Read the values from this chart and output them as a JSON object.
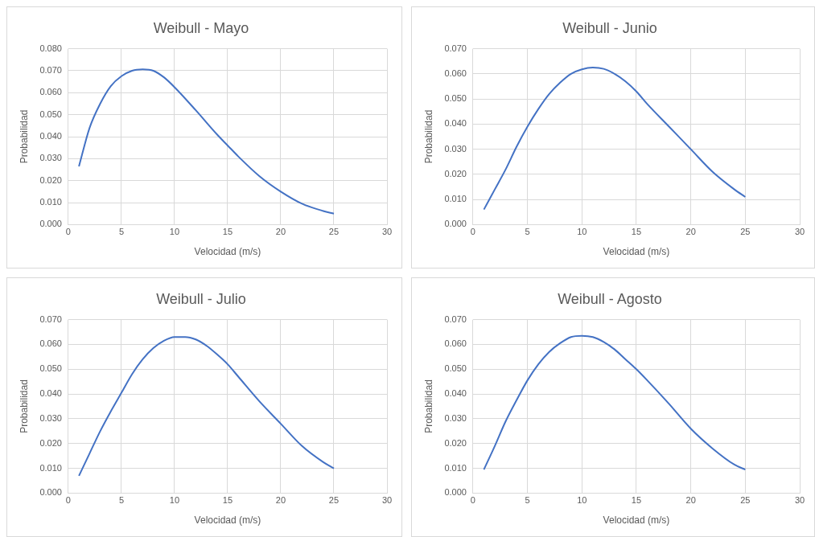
{
  "chart_data": [
    {
      "type": "line",
      "title": "Weibull - Mayo",
      "xlabel": "Velocidad (m/s)",
      "ylabel": "Probabilidad",
      "grid": true,
      "x": [
        1,
        2,
        3,
        4,
        5,
        6,
        7,
        8,
        9,
        10,
        12,
        14,
        15,
        16,
        18,
        20,
        22,
        24,
        25
      ],
      "series": [
        {
          "color": "#4472c4",
          "values": [
            0.0265,
            0.044,
            0.055,
            0.063,
            0.0675,
            0.07,
            0.0706,
            0.07,
            0.067,
            0.0625,
            0.052,
            0.041,
            0.036,
            0.031,
            0.022,
            0.015,
            0.0095,
            0.0062,
            0.005
          ]
        }
      ],
      "xlim": [
        0,
        30
      ],
      "xticks": [
        0,
        5,
        10,
        15,
        20,
        25,
        30
      ],
      "ylim": [
        0,
        0.08
      ],
      "yticks": [
        {
          "value": 0,
          "label": "0.000"
        },
        {
          "value": 0.01,
          "label": "0.010"
        },
        {
          "value": 0.02,
          "label": "0.020"
        },
        {
          "value": 0.03,
          "label": "0.030"
        },
        {
          "value": 0.04,
          "label": "0.040"
        },
        {
          "value": 0.05,
          "label": "0.050"
        },
        {
          "value": 0.06,
          "label": "0.060"
        },
        {
          "value": 0.07,
          "label": "0.070"
        },
        {
          "value": 0.08,
          "label": "0.080"
        }
      ]
    },
    {
      "type": "line",
      "title": "Weibull - Junio",
      "xlabel": "Velocidad (m/s)",
      "ylabel": "Probabilidad",
      "grid": true,
      "x": [
        1,
        2,
        3,
        4,
        5,
        6,
        7,
        8,
        9,
        10,
        11,
        12,
        13,
        14,
        15,
        16,
        18,
        20,
        22,
        24,
        25
      ],
      "series": [
        {
          "color": "#4472c4",
          "values": [
            0.006,
            0.014,
            0.022,
            0.031,
            0.039,
            0.046,
            0.052,
            0.0565,
            0.06,
            0.0618,
            0.0625,
            0.062,
            0.06,
            0.057,
            0.053,
            0.048,
            0.039,
            0.03,
            0.021,
            0.014,
            0.011
          ]
        }
      ],
      "xlim": [
        0,
        30
      ],
      "xticks": [
        0,
        5,
        10,
        15,
        20,
        25,
        30
      ],
      "ylim": [
        0,
        0.07
      ],
      "yticks": [
        {
          "value": 0,
          "label": "0.000"
        },
        {
          "value": 0.01,
          "label": "0.010"
        },
        {
          "value": 0.02,
          "label": "0.020"
        },
        {
          "value": 0.03,
          "label": "0.030"
        },
        {
          "value": 0.04,
          "label": "0.040"
        },
        {
          "value": 0.05,
          "label": "0.050"
        },
        {
          "value": 0.06,
          "label": "0.060"
        },
        {
          "value": 0.07,
          "label": "0.070"
        }
      ]
    },
    {
      "type": "line",
      "title": "Weibull - Julio",
      "xlabel": "Velocidad (m/s)",
      "ylabel": "Probabilidad",
      "grid": true,
      "x": [
        1,
        2,
        3,
        4,
        5,
        6,
        7,
        8,
        9,
        10,
        11,
        12,
        13,
        14,
        15,
        16,
        18,
        20,
        22,
        24,
        25
      ],
      "series": [
        {
          "color": "#4472c4",
          "values": [
            0.007,
            0.016,
            0.025,
            0.033,
            0.0405,
            0.048,
            0.054,
            0.0585,
            0.0615,
            0.063,
            0.063,
            0.062,
            0.0595,
            0.056,
            0.052,
            0.047,
            0.037,
            0.028,
            0.019,
            0.0125,
            0.01
          ]
        }
      ],
      "xlim": [
        0,
        30
      ],
      "xticks": [
        0,
        5,
        10,
        15,
        20,
        25,
        30
      ],
      "ylim": [
        0,
        0.07
      ],
      "yticks": [
        {
          "value": 0,
          "label": "0.000"
        },
        {
          "value": 0.01,
          "label": "0.010"
        },
        {
          "value": 0.02,
          "label": "0.020"
        },
        {
          "value": 0.03,
          "label": "0.030"
        },
        {
          "value": 0.04,
          "label": "0.040"
        },
        {
          "value": 0.05,
          "label": "0.050"
        },
        {
          "value": 0.06,
          "label": "0.060"
        },
        {
          "value": 0.07,
          "label": "0.070"
        }
      ]
    },
    {
      "type": "line",
      "title": "Weibull - Agosto",
      "xlabel": "Velocidad (m/s)",
      "ylabel": "Probabilidad",
      "grid": true,
      "x": [
        1,
        2,
        3,
        4,
        5,
        6,
        7,
        8,
        9,
        10,
        11,
        12,
        13,
        14,
        15,
        16,
        18,
        20,
        22,
        24,
        25
      ],
      "series": [
        {
          "color": "#4472c4",
          "values": [
            0.0095,
            0.019,
            0.029,
            0.0375,
            0.0455,
            0.052,
            0.057,
            0.0605,
            0.063,
            0.0635,
            0.063,
            0.061,
            0.058,
            0.054,
            0.05,
            0.0455,
            0.036,
            0.026,
            0.018,
            0.0115,
            0.0095
          ]
        }
      ],
      "xlim": [
        0,
        30
      ],
      "xticks": [
        0,
        5,
        10,
        15,
        20,
        25,
        30
      ],
      "ylim": [
        0,
        0.07
      ],
      "yticks": [
        {
          "value": 0,
          "label": "0.000"
        },
        {
          "value": 0.01,
          "label": "0.010"
        },
        {
          "value": 0.02,
          "label": "0.020"
        },
        {
          "value": 0.03,
          "label": "0.030"
        },
        {
          "value": 0.04,
          "label": "0.040"
        },
        {
          "value": 0.05,
          "label": "0.050"
        },
        {
          "value": 0.06,
          "label": "0.060"
        },
        {
          "value": 0.07,
          "label": "0.070"
        }
      ]
    }
  ]
}
